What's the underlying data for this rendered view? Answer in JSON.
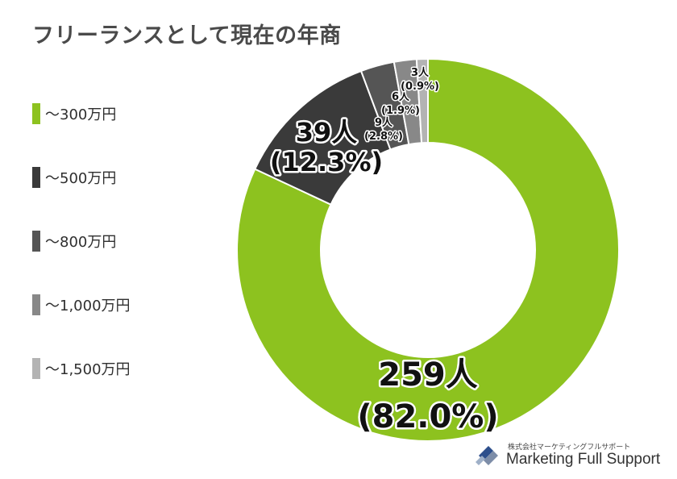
{
  "title": "フリーランスとして現在の年商",
  "legend": [
    {
      "label": "〜300万円",
      "color": "#8dc21f"
    },
    {
      "label": "〜500万円",
      "color": "#3a3a3a"
    },
    {
      "label": "〜800万円",
      "color": "#555555"
    },
    {
      "label": "〜1,000万円",
      "color": "#888888"
    },
    {
      "label": "〜1,500万円",
      "color": "#b3b3b3"
    }
  ],
  "chart_data": {
    "type": "pie",
    "donut": true,
    "title": "フリーランスとして現在の年商",
    "legend_position": "left",
    "categories": [
      "〜300万円",
      "〜500万円",
      "〜800万円",
      "〜1,000万円",
      "〜1,500万円"
    ],
    "values": [
      259,
      39,
      9,
      6,
      3
    ],
    "percentages": [
      82.0,
      12.3,
      2.8,
      1.9,
      0.9
    ],
    "colors": [
      "#8dc21f",
      "#3a3a3a",
      "#555555",
      "#888888",
      "#b3b3b3"
    ],
    "data_labels": [
      {
        "count": "259人",
        "percent": "(82.0%)"
      },
      {
        "count": "39人",
        "percent": "(12.3%)"
      },
      {
        "count": "9人",
        "percent": "(2.8%)"
      },
      {
        "count": "6人",
        "percent": "(1.9%)"
      },
      {
        "count": "3人",
        "percent": "(0.9%)"
      }
    ]
  },
  "brand": {
    "subtitle": "株式会社マーケティングフルサポート",
    "name": "Marketing Full Support"
  }
}
